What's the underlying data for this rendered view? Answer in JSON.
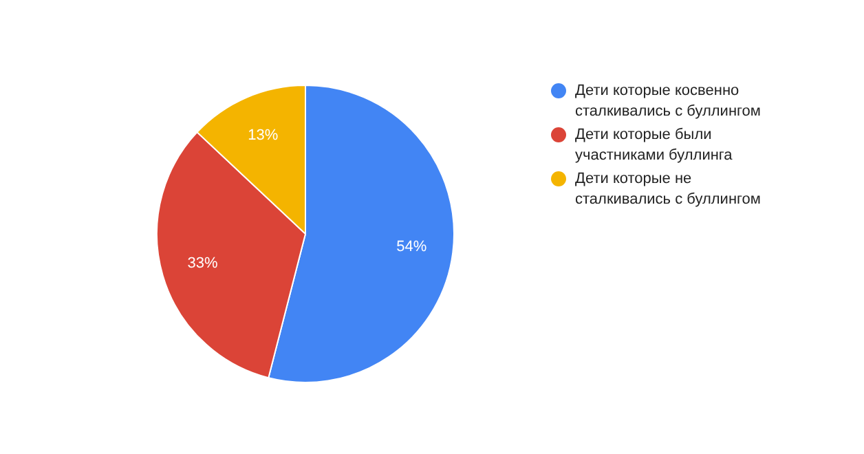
{
  "chart_data": {
    "type": "pie",
    "categories": [
      "Дети которые косвенно сталкивались с буллингом",
      "Дети которые были участниками буллинга",
      "Дети которые не сталкивались с буллингом"
    ],
    "values": [
      54,
      33,
      13
    ],
    "colors": [
      "#4285f4",
      "#db4437",
      "#f4b400"
    ],
    "value_labels": [
      "54%",
      "33%",
      "13%"
    ],
    "legend": "right"
  }
}
